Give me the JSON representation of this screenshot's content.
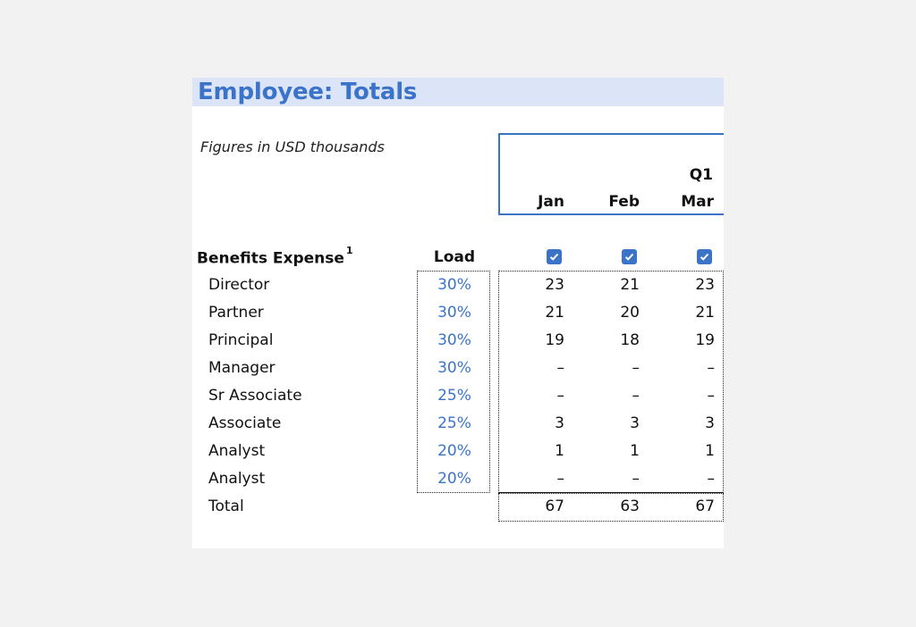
{
  "sheet": {
    "title": "Employee: Totals",
    "subtitle": "Figures in USD thousands",
    "quarter": "Q1",
    "months": [
      "Jan",
      "Feb",
      "Mar"
    ],
    "section_label": "Benefits Expense",
    "section_footnote": "1",
    "load_header": "Load",
    "checkboxes": [
      true,
      true,
      true
    ],
    "rows": [
      {
        "label": "Director",
        "load": "30%",
        "values": [
          "23",
          "21",
          "23"
        ]
      },
      {
        "label": "Partner",
        "load": "30%",
        "values": [
          "21",
          "20",
          "21"
        ]
      },
      {
        "label": "Principal",
        "load": "30%",
        "values": [
          "19",
          "18",
          "19"
        ]
      },
      {
        "label": "Manager",
        "load": "30%",
        "values": [
          "–",
          "–",
          "–"
        ]
      },
      {
        "label": "Sr Associate",
        "load": "25%",
        "values": [
          "–",
          "–",
          "–"
        ]
      },
      {
        "label": "Associate",
        "load": "25%",
        "values": [
          "3",
          "3",
          "3"
        ]
      },
      {
        "label": "Analyst",
        "load": "20%",
        "values": [
          "1",
          "1",
          "1"
        ]
      },
      {
        "label": "Analyst",
        "load": "20%",
        "values": [
          "–",
          "–",
          "–"
        ]
      }
    ],
    "total": {
      "label": "Total",
      "values": [
        "67",
        "63",
        "67"
      ]
    }
  },
  "colors": {
    "accent": "#3b73c9",
    "title_band": "#dbe5f7"
  }
}
